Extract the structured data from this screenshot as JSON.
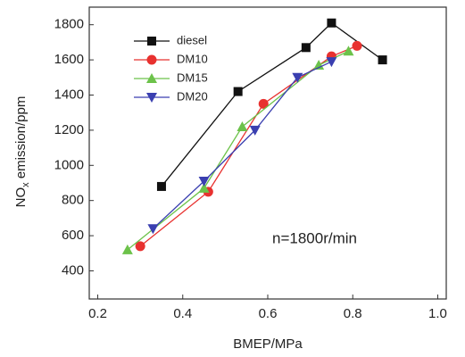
{
  "chart_data": {
    "type": "line",
    "x_label": "BMEP/MPa",
    "y_label": {
      "main": "NO",
      "sub": "x",
      "rest": " emission/ppm"
    },
    "annotation": "n=1800r/min",
    "xlim": [
      0.18,
      1.02
    ],
    "ylim": [
      240,
      1900
    ],
    "xticks": [
      0.2,
      0.4,
      0.6,
      0.8,
      {
        "value": 1,
        "label": "1.0"
      }
    ],
    "yticks": [
      400,
      600,
      800,
      1000,
      1200,
      1400,
      1600,
      1800
    ],
    "legend": "upper-left",
    "series": [
      {
        "name": "diesel",
        "color": "#111111",
        "marker": "square",
        "x": [
          0.35,
          0.53,
          0.69,
          0.75,
          0.87
        ],
        "values": [
          880,
          1420,
          1670,
          1810,
          1600
        ]
      },
      {
        "name": "DM10",
        "color": "#e8312f",
        "marker": "circle",
        "x": [
          0.3,
          0.46,
          0.59,
          0.75,
          0.81
        ],
        "values": [
          540,
          850,
          1350,
          1620,
          1680
        ]
      },
      {
        "name": "DM15",
        "color": "#6cc24a",
        "marker": "triangle-up",
        "x": [
          0.27,
          0.45,
          0.54,
          0.72,
          0.79
        ],
        "values": [
          520,
          870,
          1220,
          1570,
          1650
        ]
      },
      {
        "name": "DM20",
        "color": "#3a3fb0",
        "marker": "triangle-down",
        "x": [
          0.33,
          0.45,
          0.57,
          0.67,
          0.75
        ],
        "values": [
          640,
          910,
          1200,
          1500,
          1590
        ]
      }
    ]
  }
}
